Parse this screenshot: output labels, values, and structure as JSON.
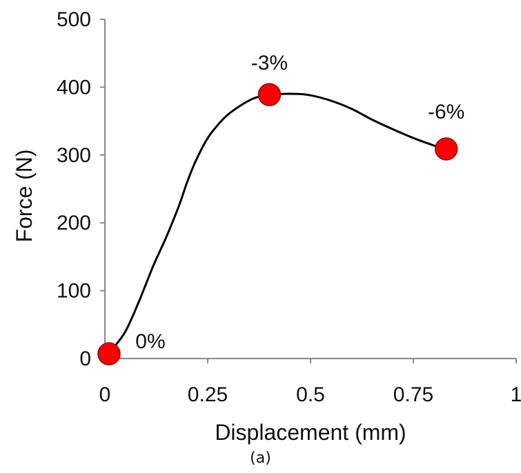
{
  "caption": "(a)",
  "chart_data": {
    "type": "line",
    "xlabel": "Displacement (mm)",
    "ylabel": "Force (N)",
    "xlim": [
      0,
      1
    ],
    "ylim": [
      0,
      500
    ],
    "xticks": [
      0,
      0.25,
      0.5,
      0.75,
      1
    ],
    "xtick_labels": [
      "0",
      "0.25",
      "0.5",
      "0.75",
      "1"
    ],
    "yticks": [
      0,
      100,
      200,
      300,
      400,
      500
    ],
    "ytick_labels": [
      "0",
      "100",
      "200",
      "300",
      "400",
      "500"
    ],
    "grid": false,
    "series": [
      {
        "x": [
          0.0,
          0.02,
          0.05,
          0.08,
          0.1,
          0.12,
          0.15,
          0.18,
          0.2,
          0.22,
          0.25,
          0.28,
          0.3,
          0.33,
          0.36,
          0.39,
          0.43,
          0.47,
          0.5,
          0.55,
          0.6,
          0.65,
          0.7,
          0.75,
          0.8,
          0.83
        ],
        "y": [
          0,
          15,
          40,
          80,
          110,
          140,
          180,
          225,
          260,
          290,
          325,
          348,
          360,
          373,
          383,
          388,
          390,
          390,
          388,
          380,
          368,
          352,
          338,
          325,
          314,
          308
        ],
        "color": "#000000"
      }
    ],
    "markers": [
      {
        "x": 0.01,
        "y": 7,
        "label": "0%"
      },
      {
        "x": 0.4,
        "y": 389,
        "label": "-3%"
      },
      {
        "x": 0.83,
        "y": 309,
        "label": "-6%"
      }
    ],
    "marker_color": "#ff0000"
  }
}
